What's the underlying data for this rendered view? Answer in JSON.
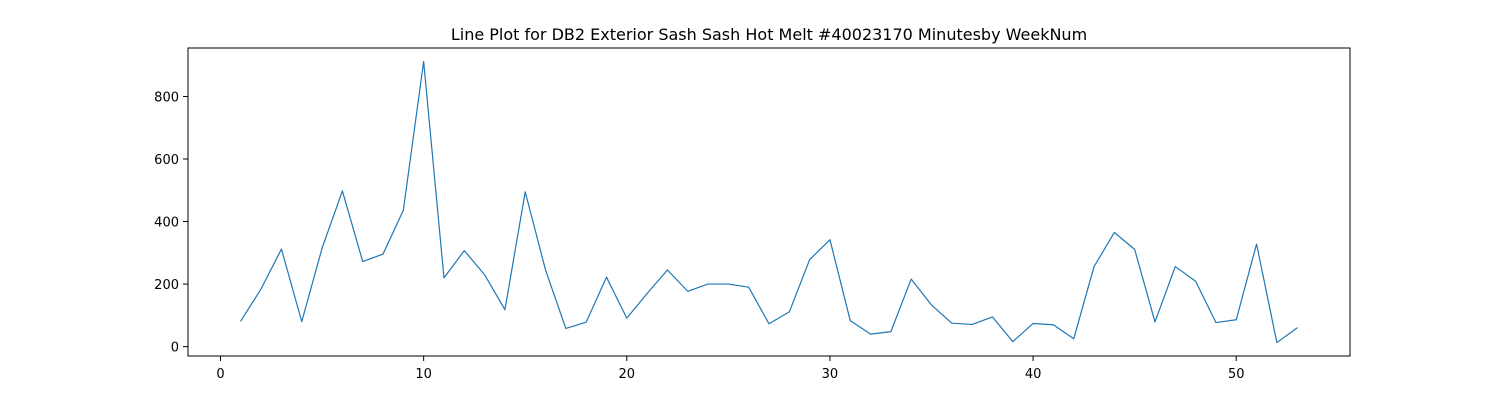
{
  "chart_data": {
    "type": "line",
    "title": "Line Plot for DB2 Exterior Sash Sash Hot Melt #40023170 Minutesby WeekNum",
    "xlabel": "",
    "ylabel": "",
    "xlim": [
      -1.6,
      55.6
    ],
    "ylim": [
      -30,
      955
    ],
    "xticks": [
      0,
      10,
      20,
      30,
      40,
      50
    ],
    "yticks": [
      0,
      200,
      400,
      600,
      800
    ],
    "grid": false,
    "legend": "none",
    "line_color": "#1f77b4",
    "x": [
      1,
      2,
      3,
      4,
      5,
      6,
      7,
      8,
      9,
      10,
      11,
      12,
      13,
      14,
      15,
      16,
      17,
      18,
      19,
      20,
      21,
      22,
      23,
      24,
      25,
      26,
      27,
      28,
      29,
      30,
      31,
      32,
      33,
      34,
      35,
      36,
      37,
      38,
      39,
      40,
      41,
      42,
      43,
      44,
      45,
      46,
      47,
      48,
      49,
      50,
      51,
      52,
      53
    ],
    "values": [
      82,
      185,
      312,
      80,
      315,
      498,
      272,
      296,
      436,
      912,
      220,
      307,
      230,
      118,
      495,
      245,
      58,
      78,
      222,
      91,
      170,
      245,
      177,
      200,
      200,
      190,
      73,
      111,
      278,
      342,
      83,
      40,
      48,
      216,
      133,
      75,
      71,
      95,
      16,
      74,
      70,
      25,
      256,
      365,
      311,
      79,
      256,
      209,
      77,
      86,
      328,
      13,
      60
    ]
  }
}
